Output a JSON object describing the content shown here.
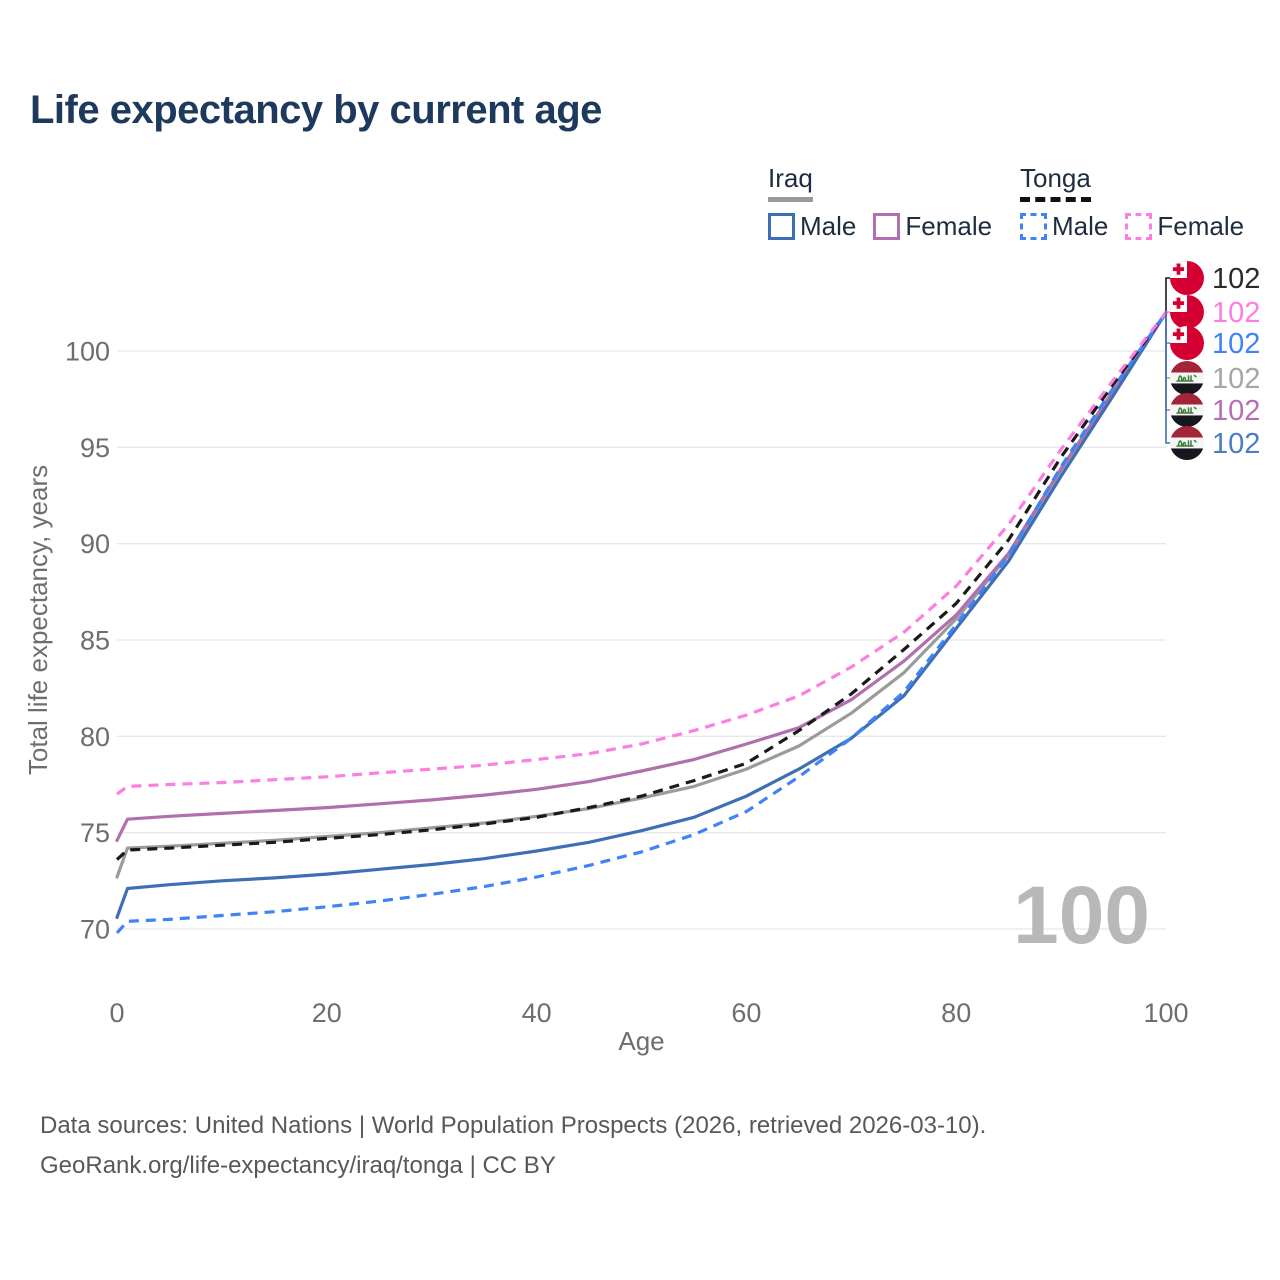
{
  "header": {
    "title": "Life expectancy by current age"
  },
  "legend": {
    "groups": [
      {
        "label": "Iraq",
        "line_style": "solid",
        "underline_color": "#9b9b9b",
        "items": [
          {
            "label": "Male",
            "color": "#3e6fb4"
          },
          {
            "label": "Female",
            "color": "#b06fad"
          }
        ]
      },
      {
        "label": "Tonga",
        "line_style": "dashed",
        "underline_color": "#111111",
        "items": [
          {
            "label": "Male",
            "color": "#4083f7"
          },
          {
            "label": "Female",
            "color": "#fc7ee2"
          }
        ]
      }
    ]
  },
  "chart_data": {
    "type": "line",
    "title": "Life expectancy by current age",
    "xlabel": "Age",
    "ylabel": "Total life expectancy, years",
    "xlim": [
      0,
      100
    ],
    "ylim": [
      70,
      100
    ],
    "x_ticks": [
      0,
      20,
      40,
      60,
      80,
      100
    ],
    "y_ticks": [
      70,
      75,
      80,
      85,
      90,
      95,
      100
    ],
    "grid": "horizontal",
    "legend_position": "top-right",
    "age_indicator": "100",
    "x": [
      0,
      1,
      5,
      10,
      15,
      20,
      25,
      30,
      35,
      40,
      45,
      50,
      55,
      60,
      65,
      70,
      75,
      80,
      85,
      90,
      95,
      100
    ],
    "series": [
      {
        "key": "iraq_total",
        "name": "Iraq",
        "country": "iraq",
        "sex": "all",
        "style": "solid",
        "color": "#9b9b9b",
        "label_color": "#a6a6a6",
        "end_value": "102",
        "values": [
          72.7,
          74.2,
          74.3,
          74.45,
          74.6,
          74.8,
          75.0,
          75.25,
          75.5,
          75.85,
          76.25,
          76.8,
          77.4,
          78.3,
          79.5,
          81.2,
          83.3,
          86.1,
          89.4,
          93.8,
          98.0,
          102
        ]
      },
      {
        "key": "iraq_female",
        "name": "Iraq Female",
        "country": "iraq",
        "sex": "female",
        "style": "solid",
        "color": "#b06fad",
        "label_color": "#b76fb3",
        "end_value": "102",
        "values": [
          74.6,
          75.7,
          75.85,
          76.0,
          76.15,
          76.3,
          76.5,
          76.7,
          76.95,
          77.25,
          77.65,
          78.2,
          78.8,
          79.6,
          80.45,
          81.9,
          83.9,
          86.3,
          89.5,
          93.9,
          97.9,
          102
        ]
      },
      {
        "key": "iraq_male",
        "name": "Iraq Male",
        "country": "iraq",
        "sex": "male",
        "style": "solid",
        "color": "#3e6fb4",
        "label_color": "#4a7cc7",
        "end_value": "102",
        "values": [
          70.6,
          72.1,
          72.3,
          72.5,
          72.65,
          72.85,
          73.1,
          73.35,
          73.65,
          74.05,
          74.5,
          75.1,
          75.8,
          76.9,
          78.3,
          79.9,
          82.1,
          85.6,
          89.1,
          93.5,
          97.7,
          102
        ]
      },
      {
        "key": "tonga_male",
        "name": "Tonga Male",
        "country": "tonga",
        "sex": "male",
        "style": "dashed",
        "color": "#4083f7",
        "label_color": "#4083f7",
        "end_value": "102",
        "values": [
          69.8,
          70.4,
          70.5,
          70.7,
          70.9,
          71.15,
          71.45,
          71.8,
          72.2,
          72.7,
          73.3,
          74.0,
          74.9,
          76.1,
          77.9,
          79.9,
          82.3,
          85.8,
          89.4,
          94.0,
          98.1,
          102
        ]
      },
      {
        "key": "tonga_total",
        "name": "Tonga",
        "country": "tonga",
        "sex": "all",
        "style": "dashed",
        "color": "#1a1a1a",
        "label_color": "#2b2b2b",
        "end_value": "102",
        "values": [
          73.6,
          74.1,
          74.2,
          74.35,
          74.5,
          74.7,
          74.9,
          75.15,
          75.45,
          75.8,
          76.3,
          76.9,
          77.7,
          78.6,
          80.3,
          82.2,
          84.5,
          86.9,
          90.2,
          94.5,
          98.3,
          102
        ]
      },
      {
        "key": "tonga_female",
        "name": "Tonga Female",
        "country": "tonga",
        "sex": "female",
        "style": "dashed",
        "color": "#fc7ee2",
        "label_color": "#fc7ee2",
        "end_value": "102",
        "values": [
          77.0,
          77.4,
          77.5,
          77.6,
          77.75,
          77.9,
          78.1,
          78.3,
          78.5,
          78.8,
          79.1,
          79.6,
          80.3,
          81.1,
          82.1,
          83.6,
          85.4,
          87.8,
          91.0,
          94.9,
          98.5,
          102
        ]
      }
    ],
    "end_labels": {
      "order": [
        "tonga_total",
        "tonga_female",
        "tonga_male",
        "iraq_total",
        "iraq_female",
        "iraq_male"
      ]
    }
  },
  "footer": {
    "line1": "Data sources: United Nations | World Population Prospects (2026, retrieved 2026-03-10).",
    "line2": "GeoRank.org/life-expectancy/iraq/tonga | CC BY"
  }
}
